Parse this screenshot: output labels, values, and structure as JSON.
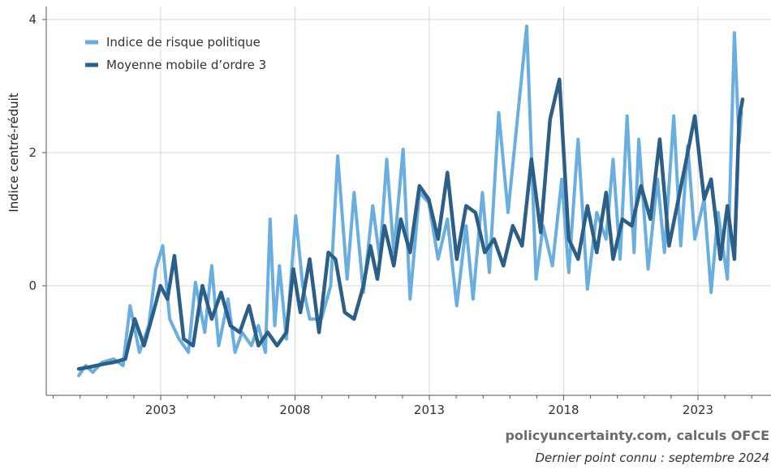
{
  "chart_data": {
    "type": "line",
    "ylabel": "Indice centré-réduit",
    "ylim": [
      -1.65,
      4.15
    ],
    "xlim": [
      1999.8,
      2025.5
    ],
    "y_ticks": [
      0,
      2,
      4
    ],
    "x_ticks": [
      2003,
      2008,
      2013,
      2018,
      2023
    ],
    "grid": true,
    "legend_position": "top-left",
    "series": [
      {
        "name": "Indice de risque politique",
        "color": "#6aaee0",
        "anchors": [
          [
            2000.0,
            -1.35
          ],
          [
            2000.3,
            -1.2
          ],
          [
            2000.6,
            -1.3
          ],
          [
            2001.0,
            -1.15
          ],
          [
            2001.5,
            -1.1
          ],
          [
            2001.9,
            -1.2
          ],
          [
            2002.2,
            -0.3
          ],
          [
            2002.6,
            -1.0
          ],
          [
            2003.0,
            -0.6
          ],
          [
            2003.3,
            0.25
          ],
          [
            2003.6,
            0.6
          ],
          [
            2003.9,
            -0.5
          ],
          [
            2004.3,
            -0.8
          ],
          [
            2004.7,
            -1.0
          ],
          [
            2005.0,
            0.05
          ],
          [
            2005.4,
            -0.7
          ],
          [
            2005.7,
            0.3
          ],
          [
            2006.0,
            -0.9
          ],
          [
            2006.4,
            -0.2
          ],
          [
            2006.7,
            -1.0
          ],
          [
            2007.0,
            -0.7
          ],
          [
            2007.4,
            -0.9
          ],
          [
            2007.7,
            -0.6
          ],
          [
            2008.0,
            -1.0
          ],
          [
            2008.2,
            1.0
          ],
          [
            2008.4,
            -0.6
          ],
          [
            2008.6,
            0.3
          ],
          [
            2008.9,
            -0.8
          ],
          [
            2009.3,
            1.05
          ],
          [
            2009.6,
            0.0
          ],
          [
            2009.9,
            -0.5
          ],
          [
            2010.4,
            -0.5
          ],
          [
            2010.8,
            0.0
          ],
          [
            2011.1,
            1.95
          ],
          [
            2011.5,
            0.1
          ],
          [
            2011.8,
            1.4
          ],
          [
            2012.2,
            -0.1
          ],
          [
            2012.6,
            1.2
          ],
          [
            2012.9,
            0.4
          ],
          [
            2013.2,
            1.9
          ],
          [
            2013.5,
            0.5
          ],
          [
            2013.9,
            2.05
          ],
          [
            2014.2,
            -0.2
          ],
          [
            2014.6,
            1.4
          ],
          [
            2015.0,
            1.25
          ],
          [
            2015.4,
            0.4
          ],
          [
            2015.8,
            1.0
          ],
          [
            2016.2,
            -0.3
          ],
          [
            2016.6,
            0.9
          ],
          [
            2016.9,
            -0.2
          ],
          [
            2017.3,
            1.4
          ],
          [
            2017.6,
            0.2
          ],
          [
            2018.0,
            2.6
          ],
          [
            2018.4,
            1.1
          ],
          [
            2018.8,
            2.5
          ],
          [
            2019.2,
            3.9
          ],
          [
            2019.6,
            0.1
          ],
          [
            2019.9,
            0.9
          ],
          [
            2020.3,
            0.3
          ],
          [
            2020.7,
            1.6
          ],
          [
            2021.0,
            0.2
          ],
          [
            2021.4,
            2.2
          ],
          [
            2021.8,
            -0.05
          ],
          [
            2022.2,
            1.1
          ],
          [
            2022.6,
            0.7
          ],
          [
            2022.9,
            1.9
          ],
          [
            2023.2,
            0.4
          ],
          [
            2023.5,
            2.55
          ],
          [
            2023.8,
            0.5
          ],
          [
            2024.0,
            2.2
          ],
          [
            2024.4,
            0.25
          ],
          [
            2024.8,
            1.6
          ],
          [
            2025.1,
            0.5
          ],
          [
            2025.5,
            2.55
          ],
          [
            2025.8,
            0.6
          ],
          [
            2026.1,
            2.1
          ],
          [
            2026.4,
            0.7
          ],
          [
            2026.8,
            1.3
          ],
          [
            2027.1,
            -0.1
          ],
          [
            2027.4,
            1.1
          ],
          [
            2027.8,
            0.1
          ],
          [
            2028.1,
            3.8
          ],
          [
            2028.3,
            2.15
          ],
          [
            2028.4,
            2.6
          ]
        ]
      },
      {
        "name": "Moyenne mobile d’ordre 3",
        "color": "#2c5f88",
        "anchors": [
          [
            2000.0,
            -1.25
          ],
          [
            2000.5,
            -1.22
          ],
          [
            2001.0,
            -1.18
          ],
          [
            2001.5,
            -1.15
          ],
          [
            2002.0,
            -1.1
          ],
          [
            2002.4,
            -0.5
          ],
          [
            2002.8,
            -0.9
          ],
          [
            2003.2,
            -0.4
          ],
          [
            2003.5,
            0.0
          ],
          [
            2003.8,
            -0.2
          ],
          [
            2004.1,
            0.45
          ],
          [
            2004.5,
            -0.8
          ],
          [
            2004.9,
            -0.9
          ],
          [
            2005.3,
            0.0
          ],
          [
            2005.7,
            -0.5
          ],
          [
            2006.1,
            -0.1
          ],
          [
            2006.5,
            -0.6
          ],
          [
            2006.9,
            -0.7
          ],
          [
            2007.3,
            -0.3
          ],
          [
            2007.7,
            -0.9
          ],
          [
            2008.1,
            -0.7
          ],
          [
            2008.5,
            -0.9
          ],
          [
            2008.9,
            -0.7
          ],
          [
            2009.2,
            0.25
          ],
          [
            2009.5,
            -0.4
          ],
          [
            2009.9,
            0.4
          ],
          [
            2010.3,
            -0.7
          ],
          [
            2010.7,
            0.5
          ],
          [
            2011.0,
            0.4
          ],
          [
            2011.4,
            -0.4
          ],
          [
            2011.8,
            -0.5
          ],
          [
            2012.2,
            0.0
          ],
          [
            2012.5,
            0.6
          ],
          [
            2012.8,
            0.1
          ],
          [
            2013.1,
            0.9
          ],
          [
            2013.5,
            0.3
          ],
          [
            2013.8,
            1.0
          ],
          [
            2014.2,
            0.5
          ],
          [
            2014.6,
            1.5
          ],
          [
            2015.0,
            1.3
          ],
          [
            2015.4,
            0.7
          ],
          [
            2015.8,
            1.7
          ],
          [
            2016.2,
            0.4
          ],
          [
            2016.6,
            1.2
          ],
          [
            2017.0,
            1.1
          ],
          [
            2017.4,
            0.5
          ],
          [
            2017.8,
            0.7
          ],
          [
            2018.2,
            0.3
          ],
          [
            2018.6,
            0.9
          ],
          [
            2019.0,
            0.6
          ],
          [
            2019.4,
            1.9
          ],
          [
            2019.8,
            0.8
          ],
          [
            2020.2,
            2.5
          ],
          [
            2020.6,
            3.1
          ],
          [
            2021.0,
            0.7
          ],
          [
            2021.4,
            0.4
          ],
          [
            2021.8,
            1.2
          ],
          [
            2022.2,
            0.5
          ],
          [
            2022.6,
            1.4
          ],
          [
            2022.9,
            0.4
          ],
          [
            2023.3,
            1.0
          ],
          [
            2023.7,
            0.9
          ],
          [
            2024.1,
            1.5
          ],
          [
            2024.5,
            1.0
          ],
          [
            2024.9,
            2.2
          ],
          [
            2025.3,
            0.6
          ],
          [
            2025.7,
            1.3
          ],
          [
            2026.1,
            2.0
          ],
          [
            2026.4,
            2.55
          ],
          [
            2026.8,
            1.3
          ],
          [
            2027.1,
            1.6
          ],
          [
            2027.5,
            0.4
          ],
          [
            2027.8,
            1.2
          ],
          [
            2028.1,
            0.4
          ],
          [
            2028.3,
            2.5
          ],
          [
            2028.45,
            2.8
          ]
        ]
      }
    ]
  },
  "footer": {
    "source": "policyuncertainty.com, calculs OFCE",
    "note": "Dernier point connu : septembre 2024"
  }
}
